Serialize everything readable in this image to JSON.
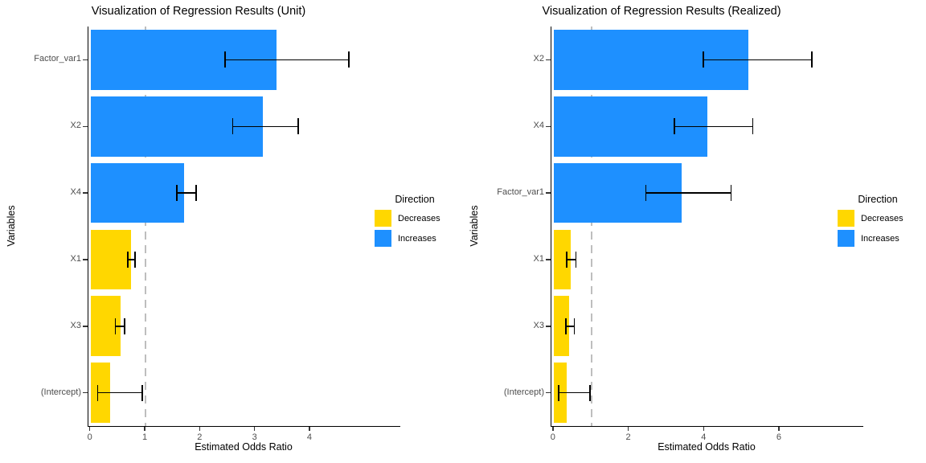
{
  "figure": {
    "background": "#FFFFFF"
  },
  "colors": {
    "increases": "#1E90FF",
    "decreases": "#FFD700",
    "reference_line": "#BEBEBE",
    "error_bar": "#000000",
    "axis_line": "#000000",
    "tick_text": "#4D4D4D",
    "title_text": "#000000"
  },
  "chart_data": [
    {
      "type": "bar",
      "orientation": "horizontal",
      "title": "Visualization of Regression Results (Unit)",
      "xlabel": "Estimated Odds Ratio",
      "ylabel": "Variables",
      "xlim": [
        -0.04,
        5.64
      ],
      "xticks": [
        0,
        1,
        2,
        3,
        4
      ],
      "reference_line_x": 1,
      "grid": false,
      "legend": {
        "title": "Direction",
        "position": "right",
        "entries": [
          {
            "label": "Decreases",
            "color": "#FFD700"
          },
          {
            "label": "Increases",
            "color": "#1E90FF"
          }
        ]
      },
      "bars": [
        {
          "category": "Factor_var1",
          "value": 3.38,
          "ci_low": 2.45,
          "ci_high": 4.7,
          "direction": "Increases"
        },
        {
          "category": "X2",
          "value": 3.13,
          "ci_low": 2.59,
          "ci_high": 3.78,
          "direction": "Increases"
        },
        {
          "category": "X4",
          "value": 1.7,
          "ci_low": 1.57,
          "ci_high": 1.92,
          "direction": "Increases"
        },
        {
          "category": "X1",
          "value": 0.74,
          "ci_low": 0.68,
          "ci_high": 0.81,
          "direction": "Decreases"
        },
        {
          "category": "X3",
          "value": 0.54,
          "ci_low": 0.45,
          "ci_high": 0.62,
          "direction": "Decreases"
        },
        {
          "category": "(Intercept)",
          "value": 0.35,
          "ci_low": 0.13,
          "ci_high": 0.94,
          "direction": "Decreases"
        }
      ]
    },
    {
      "type": "bar",
      "orientation": "horizontal",
      "title": "Visualization of Regression Results (Realized)",
      "xlabel": "Estimated Odds Ratio",
      "ylabel": "Variables",
      "xlim": [
        -0.06,
        8.22
      ],
      "xticks": [
        0,
        2,
        4,
        6
      ],
      "reference_line_x": 1,
      "grid": false,
      "legend": {
        "title": "Direction",
        "position": "right",
        "entries": [
          {
            "label": "Decreases",
            "color": "#FFD700"
          },
          {
            "label": "Increases",
            "color": "#1E90FF"
          }
        ]
      },
      "bars": [
        {
          "category": "X2",
          "value": 5.17,
          "ci_low": 3.97,
          "ci_high": 6.85,
          "direction": "Increases"
        },
        {
          "category": "X4",
          "value": 4.07,
          "ci_low": 3.2,
          "ci_high": 5.29,
          "direction": "Increases"
        },
        {
          "category": "Factor_var1",
          "value": 3.4,
          "ci_low": 2.45,
          "ci_high": 4.71,
          "direction": "Increases"
        },
        {
          "category": "X1",
          "value": 0.46,
          "ci_low": 0.35,
          "ci_high": 0.59,
          "direction": "Decreases"
        },
        {
          "category": "X3",
          "value": 0.41,
          "ci_low": 0.32,
          "ci_high": 0.55,
          "direction": "Decreases"
        },
        {
          "category": "(Intercept)",
          "value": 0.35,
          "ci_low": 0.13,
          "ci_high": 0.96,
          "direction": "Decreases"
        }
      ]
    }
  ]
}
